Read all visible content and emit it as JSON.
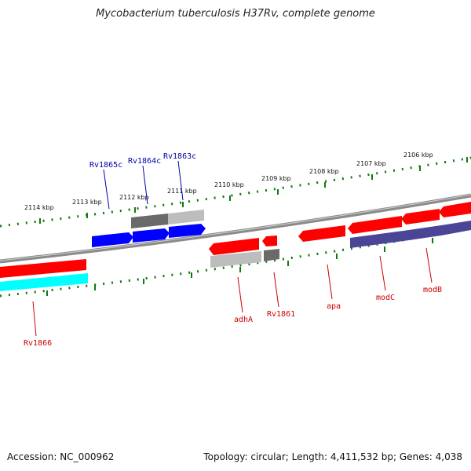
{
  "title": "Mycobacterium tuberculosis H37Rv, complete genome",
  "footer": {
    "accession": "Accession: NC_000962",
    "summary": "Topology: circular; Length: 4,411,532 bp; Genes: 4,038"
  },
  "colors": {
    "backbone": "#7f7f7f",
    "ticks": "#0f7a0f",
    "forward_cds": "#ff0000",
    "reverse_cds": "#0000ff",
    "forward_label": "#cc0000",
    "reverse_label": "#0000aa",
    "rna_light": "#bbbbbb",
    "rna_dark": "#6a6a6a",
    "cyan": "#00ffff",
    "purple": "#4a4597"
  },
  "scale": {
    "labels": [
      "2114 kbp",
      "2113 kbp",
      "2112 kbp",
      "2111 kbp",
      "2110 kbp",
      "2109 kbp",
      "2108 kbp",
      "2107 kbp",
      "2106 kbp"
    ]
  },
  "genes": {
    "Rv1866": "Rv1866",
    "Rv1865c": "Rv1865c",
    "Rv1864c": "Rv1864c",
    "Rv1863c": "Rv1863c",
    "adhA": "adhA",
    "Rv1861": "Rv1861",
    "apa": "apa",
    "modC": "modC",
    "modB": "modB"
  }
}
